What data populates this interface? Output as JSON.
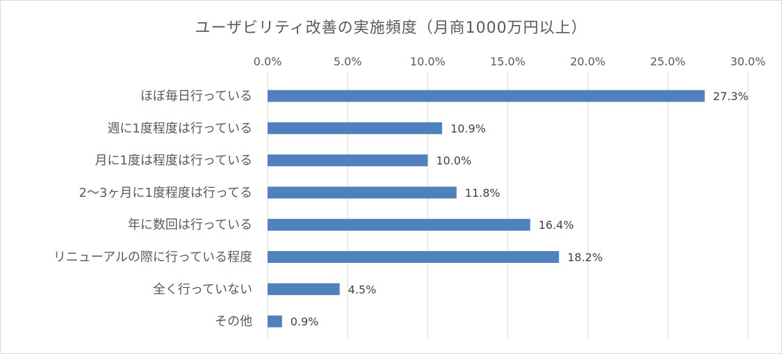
{
  "chart_data": {
    "type": "bar",
    "orientation": "horizontal",
    "title": "ユーザビリティ改善の実施頻度（月商1000万円以上）",
    "categories": [
      "ほぼ毎日行っている",
      "週に1度程度は行っている",
      "月に1度は程度は行っている",
      "2〜3ヶ月に1度程度は行ってる",
      "年に数回は行っている",
      "リニューアルの際に行っている程度",
      "全く行っていない",
      "その他"
    ],
    "values": [
      27.3,
      10.9,
      10.0,
      11.8,
      16.4,
      18.2,
      4.5,
      0.9
    ],
    "value_labels": [
      "27.3%",
      "10.9%",
      "10.0%",
      "11.8%",
      "16.4%",
      "18.2%",
      "4.5%",
      "0.9%"
    ],
    "xlim": [
      0,
      30
    ],
    "xticks": [
      0,
      5,
      10,
      15,
      20,
      25,
      30
    ],
    "xtick_labels": [
      "0.0%",
      "5.0%",
      "10.0%",
      "15.0%",
      "20.0%",
      "25.0%",
      "30.0%"
    ],
    "x_axis_position": "top",
    "grid": true,
    "legend": "none",
    "bar_color": "#4f81bd",
    "grid_color": "#d9d9d9"
  }
}
